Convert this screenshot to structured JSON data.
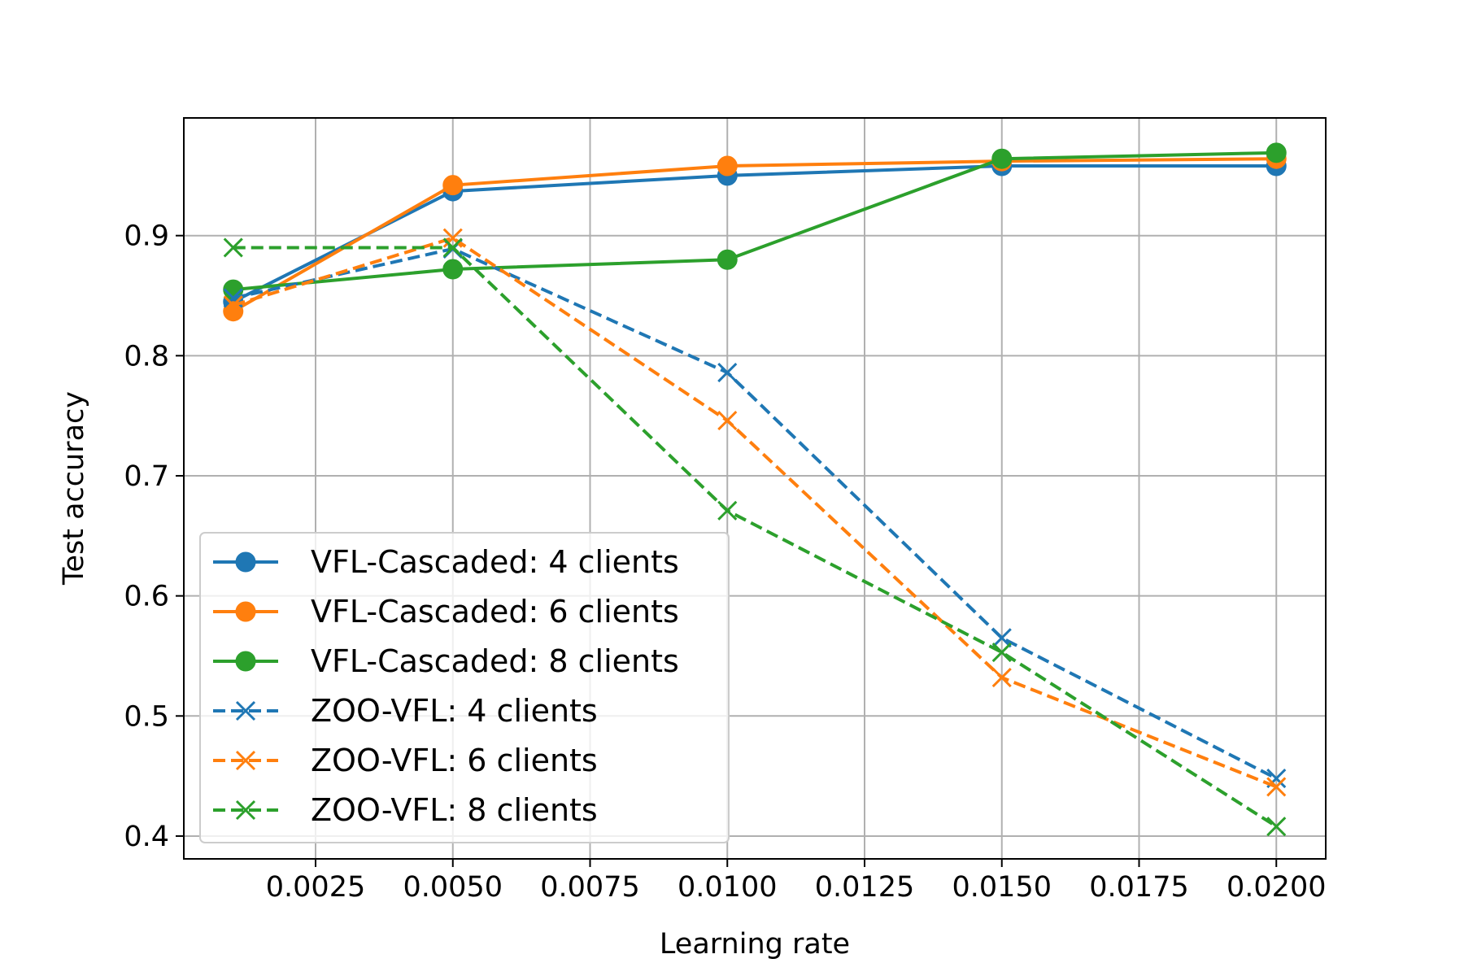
{
  "chart_data": {
    "type": "line",
    "title": "",
    "xlabel": "Learning rate",
    "ylabel": "Test accuracy",
    "xlim": [
      0.0001,
      0.0209
    ],
    "ylim": [
      0.381,
      0.998
    ],
    "x": [
      0.001,
      0.005,
      0.01,
      0.015,
      0.02
    ],
    "xticks": [
      0.0025,
      0.005,
      0.0075,
      0.01,
      0.0125,
      0.015,
      0.0175,
      0.02
    ],
    "xtick_labels": [
      "0.0025",
      "0.0050",
      "0.0075",
      "0.0100",
      "0.0125",
      "0.0150",
      "0.0175",
      "0.0200"
    ],
    "yticks": [
      0.4,
      0.5,
      0.6,
      0.7,
      0.8,
      0.9
    ],
    "ytick_labels": [
      "0.4",
      "0.5",
      "0.6",
      "0.7",
      "0.8",
      "0.9"
    ],
    "grid": true,
    "legend_position": "lower-left",
    "series": [
      {
        "name": "VFL-Cascaded: 4 clients",
        "color": "#1f77b4",
        "style": "solid",
        "marker": "circle",
        "values": [
          0.845,
          0.937,
          0.95,
          0.958,
          0.958
        ]
      },
      {
        "name": "VFL-Cascaded: 6 clients",
        "color": "#ff7f0e",
        "style": "solid",
        "marker": "circle",
        "values": [
          0.837,
          0.942,
          0.958,
          0.962,
          0.964
        ]
      },
      {
        "name": "VFL-Cascaded: 8 clients",
        "color": "#2ca02c",
        "style": "solid",
        "marker": "circle",
        "values": [
          0.855,
          0.872,
          0.88,
          0.964,
          0.969
        ]
      },
      {
        "name": "ZOO-VFL: 4 clients",
        "color": "#1f77b4",
        "style": "dashed",
        "marker": "x",
        "values": [
          0.848,
          0.889,
          0.786,
          0.565,
          0.448
        ]
      },
      {
        "name": "ZOO-VFL: 6 clients",
        "color": "#ff7f0e",
        "style": "dashed",
        "marker": "x",
        "values": [
          0.842,
          0.898,
          0.746,
          0.532,
          0.441
        ]
      },
      {
        "name": "ZOO-VFL: 8 clients",
        "color": "#2ca02c",
        "style": "dashed",
        "marker": "x",
        "values": [
          0.89,
          0.89,
          0.671,
          0.553,
          0.408
        ]
      }
    ]
  }
}
